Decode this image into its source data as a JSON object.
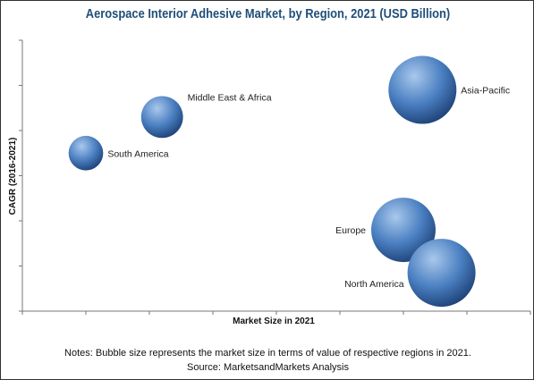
{
  "chart_data": {
    "type": "scatter",
    "title": "Aerospace Interior Adhesive Market, by Region, 2021 (USD Billion)",
    "xlabel": "Market Size in 2021",
    "ylabel": "CAGR (2016-2021)",
    "grid": false,
    "points": [
      {
        "label": "Middle East & Africa",
        "x": 2.2,
        "y": 4.3,
        "size": 0.22
      },
      {
        "label": "South America",
        "x": 1.0,
        "y": 3.5,
        "size": 0.15
      },
      {
        "label": "Asia-Pacific",
        "x": 6.3,
        "y": 4.9,
        "size": 0.58
      },
      {
        "label": "Europe",
        "x": 6.0,
        "y": 1.8,
        "size": 0.52
      },
      {
        "label": "North America",
        "x": 6.6,
        "y": 0.85,
        "size": 0.58
      }
    ]
  },
  "notes": {
    "line1": "Notes: Bubble size represents the market size in terms of value of respective regions in 2021.",
    "line2": "Source: MarketsandMarkets Analysis"
  },
  "colors": {
    "bubble_light": "#a9c8ec",
    "bubble_mid": "#4a7fc1",
    "bubble_dark": "#1c3f74",
    "title": "#1f4e79"
  }
}
